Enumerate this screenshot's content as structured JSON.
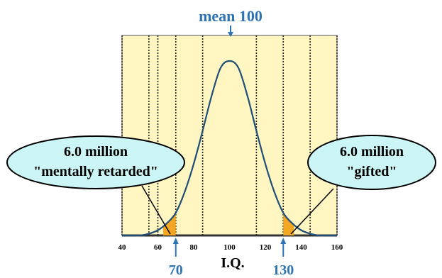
{
  "chart_data": {
    "type": "area",
    "title": "mean 100",
    "xlabel": "I.Q.",
    "ylabel": "",
    "xlim": [
      40,
      160
    ],
    "ylim": [
      0,
      1
    ],
    "x_ticks": [
      40,
      60,
      80,
      100,
      120,
      140,
      160
    ],
    "x_tick_labels": [
      "40",
      "60",
      "80",
      "100",
      "120",
      "140",
      "160"
    ],
    "vertical_gridlines_x": [
      40,
      55,
      60,
      70,
      85,
      115,
      130,
      145,
      160
    ],
    "series": [
      {
        "x": [
          40,
          45,
          50,
          55,
          60,
          65,
          70,
          75,
          80,
          85,
          90,
          95,
          100,
          105,
          110,
          115,
          120,
          125,
          130,
          135,
          140,
          145,
          150,
          155,
          160
        ],
        "values": [
          0.0,
          0.0,
          0.0,
          0.01,
          0.03,
          0.07,
          0.13,
          0.25,
          0.41,
          0.6,
          0.8,
          0.96,
          1.0,
          0.96,
          0.8,
          0.6,
          0.41,
          0.25,
          0.13,
          0.07,
          0.03,
          0.01,
          0.0,
          0.0,
          0.0
        ]
      }
    ],
    "shaded_regions": [
      {
        "from": 63,
        "to": 70,
        "color": "#F5A623"
      },
      {
        "from": 130,
        "to": 136,
        "color": "#F5A623"
      }
    ],
    "markers": [
      {
        "x": 70,
        "label": "70"
      },
      {
        "x": 130,
        "label": "130"
      }
    ],
    "callouts": [
      {
        "lines": [
          "6.0 million",
          "\"mentally retarded\""
        ],
        "points_to_x": 68
      },
      {
        "lines": [
          "6.0 million",
          "\"gifted\""
        ],
        "points_to_x": 133
      }
    ]
  },
  "colors": {
    "plot_background": "#FFF6C2",
    "curve": "#1F4E79",
    "label_blue": "#2E74B5",
    "shade": "#F5A623",
    "callout_fill": "#CCF5F5"
  }
}
